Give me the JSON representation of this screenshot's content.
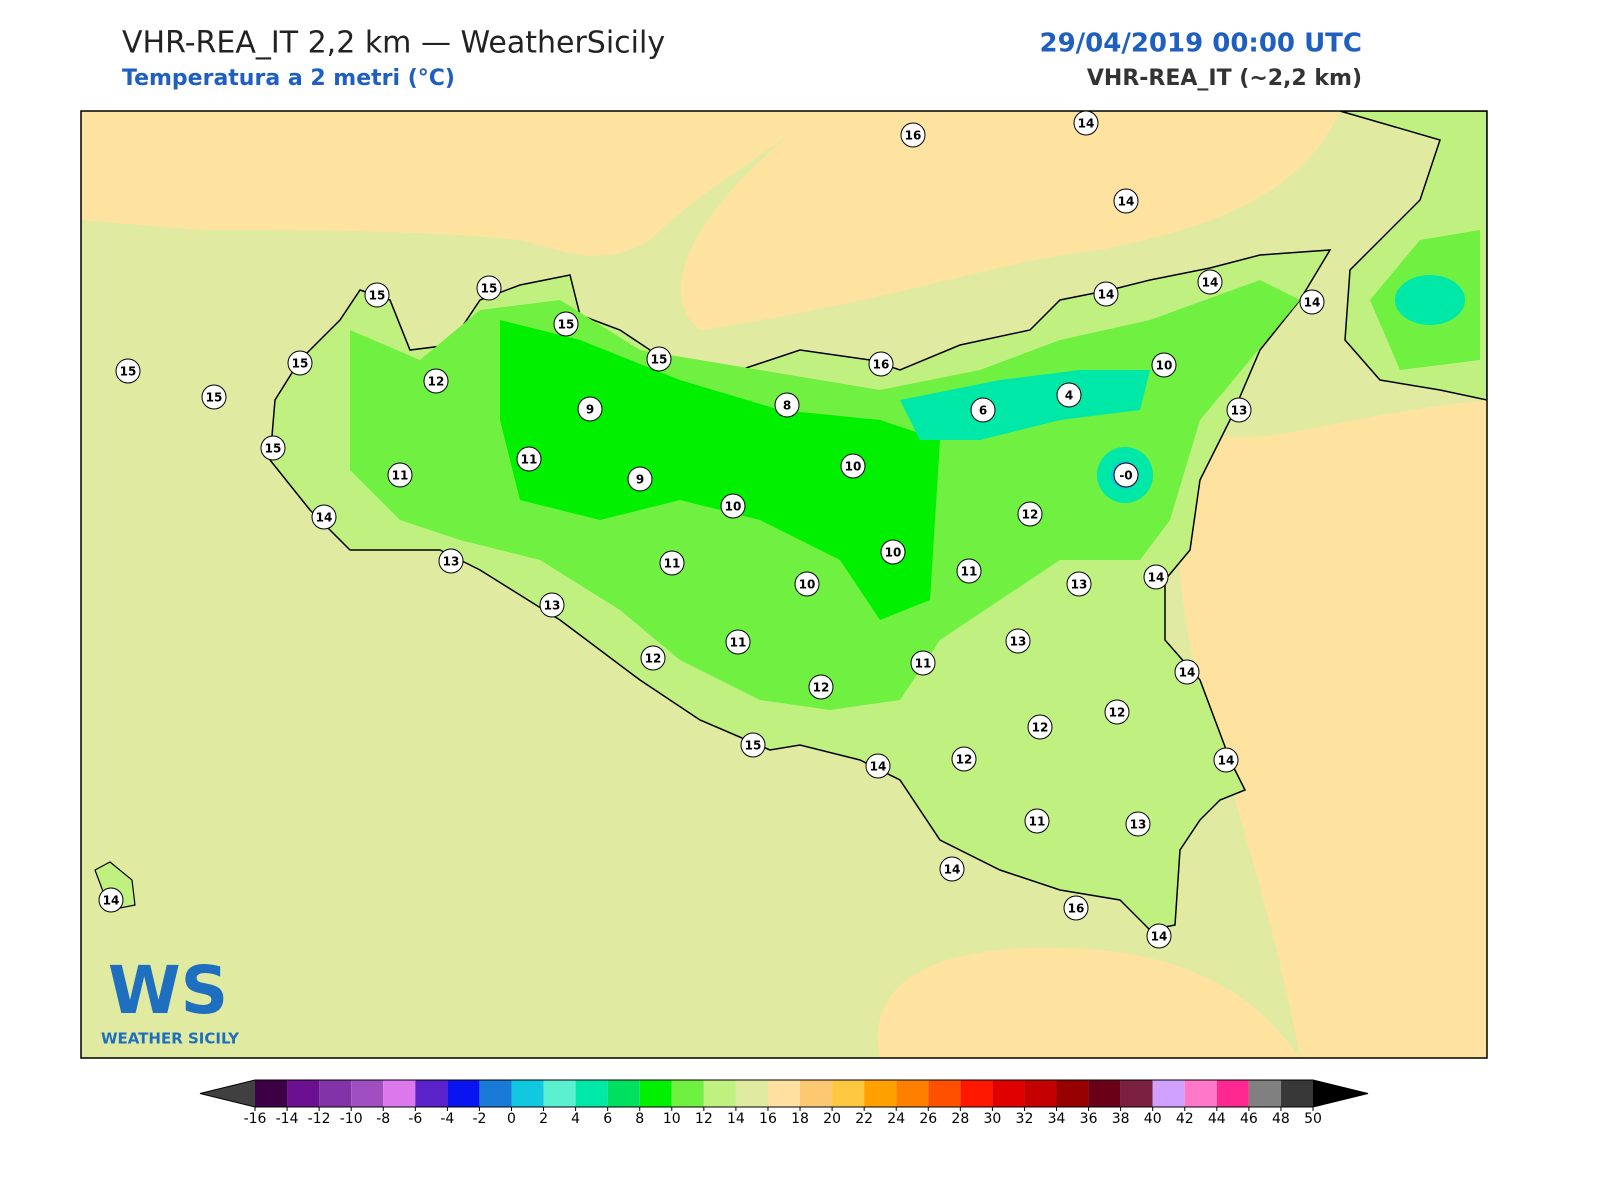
{
  "header": {
    "title": "VHR-REA_IT 2,2 km — WeatherSicily",
    "subtitle": "Temperatura a 2 metri (°C)",
    "date": "29/04/2019 00:00 UTC",
    "model": "VHR-REA_IT (~2,2 km)"
  },
  "logo": {
    "mark": "WS",
    "name": "WEATHER SICILY"
  },
  "stations": [
    "16",
    "14",
    "14",
    "15",
    "15",
    "15",
    "14",
    "14",
    "14",
    "15",
    "15",
    "15",
    "12",
    "15",
    "16",
    "10",
    "9",
    "8",
    "6",
    "4",
    "13",
    "15",
    "11",
    "11",
    "9",
    "10",
    "-0",
    "10",
    "14",
    "12",
    "10",
    "13",
    "11",
    "11",
    "10",
    "13",
    "14",
    "13",
    "13",
    "11",
    "12",
    "11",
    "14",
    "12",
    "12",
    "12",
    "15",
    "12",
    "14",
    "14",
    "11",
    "13",
    "14",
    "14",
    "16",
    "14"
  ],
  "colorbar": {
    "ticks": [
      -16,
      -14,
      -12,
      -10,
      -8,
      -6,
      -4,
      -2,
      0,
      2,
      4,
      6,
      8,
      10,
      12,
      14,
      16,
      18,
      20,
      22,
      24,
      26,
      28,
      30,
      32,
      34,
      36,
      38,
      40,
      42,
      44,
      46,
      48,
      50
    ],
    "colors": [
      "#3d0045",
      "#6a1090",
      "#8333a8",
      "#a04fc0",
      "#dc78ec",
      "#5a22c8",
      "#0a14f0",
      "#1a7ad8",
      "#10c8e0",
      "#5af0d0",
      "#00e8a8",
      "#00e060",
      "#00f000",
      "#70f040",
      "#c0f080",
      "#e0eaa0",
      "#ffe0a0",
      "#fcc870",
      "#fcc840",
      "#ffa000",
      "#ff8000",
      "#ff5000",
      "#ff1800",
      "#e00000",
      "#c40000",
      "#960000",
      "#6a0018",
      "#7a2040",
      "#d0a0ff",
      "#ff78c8",
      "#ff2890",
      "#808080",
      "#383838"
    ],
    "under": "#404040",
    "over": "#000000"
  }
}
